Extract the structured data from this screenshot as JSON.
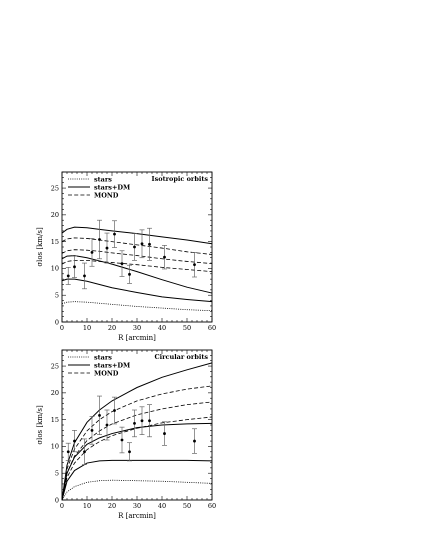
{
  "chart_data": [
    {
      "type": "line",
      "title": "Isotropic orbits",
      "xlabel": "R [arcmin]",
      "ylabel": "σlos [km/s]",
      "xlim": [
        0,
        60
      ],
      "ylim": [
        0,
        28
      ],
      "xticks": [
        0,
        10,
        20,
        30,
        40,
        50,
        60
      ],
      "yticks": [
        0,
        5,
        10,
        15,
        20,
        25
      ],
      "legend": [
        "stars",
        "stars+DM",
        "MOND"
      ],
      "legend_position": "top-left",
      "grid": false,
      "series": [
        {
          "name": "stars",
          "style": "dotted",
          "x": [
            0,
            2,
            5,
            10,
            15,
            20,
            30,
            40,
            50,
            60
          ],
          "y": [
            3.4,
            3.7,
            3.8,
            3.7,
            3.5,
            3.3,
            2.9,
            2.6,
            2.3,
            2.1
          ]
        },
        {
          "name": "stars+DM",
          "style": "solid",
          "x": [
            0,
            2,
            5,
            10,
            15,
            20,
            30,
            40,
            50,
            60
          ],
          "y": [
            16.6,
            17.3,
            17.7,
            17.6,
            17.3,
            17.0,
            16.5,
            15.9,
            15.3,
            14.6
          ]
        },
        {
          "name": "stars+DM",
          "style": "solid",
          "x": [
            0,
            2,
            5,
            10,
            15,
            20,
            30,
            40,
            50,
            60
          ],
          "y": [
            11.8,
            12.3,
            12.4,
            12.0,
            11.4,
            10.8,
            9.4,
            7.9,
            6.5,
            5.4
          ]
        },
        {
          "name": "stars+DM",
          "style": "solid",
          "x": [
            0,
            2,
            5,
            10,
            15,
            20,
            30,
            40,
            50,
            60
          ],
          "y": [
            7.7,
            8.0,
            8.0,
            7.6,
            7.0,
            6.4,
            5.5,
            4.7,
            4.2,
            3.8
          ]
        },
        {
          "name": "MOND",
          "style": "dashed",
          "x": [
            0,
            2,
            5,
            10,
            15,
            20,
            30,
            40,
            50,
            60
          ],
          "y": [
            15.0,
            15.5,
            15.7,
            15.6,
            15.3,
            15.0,
            14.4,
            13.8,
            13.1,
            12.6
          ]
        },
        {
          "name": "MOND",
          "style": "dashed",
          "x": [
            0,
            2,
            5,
            10,
            15,
            20,
            30,
            40,
            50,
            60
          ],
          "y": [
            12.8,
            13.3,
            13.5,
            13.4,
            13.2,
            12.9,
            12.4,
            11.8,
            11.3,
            10.9
          ]
        },
        {
          "name": "MOND",
          "style": "dashed",
          "x": [
            0,
            2,
            5,
            10,
            15,
            20,
            30,
            40,
            50,
            60
          ],
          "y": [
            10.8,
            11.3,
            11.5,
            11.5,
            11.3,
            11.1,
            10.7,
            10.2,
            9.8,
            9.4
          ]
        }
      ],
      "points": {
        "x": [
          2.5,
          5,
          9,
          12,
          15,
          18,
          21,
          24,
          27,
          29,
          32,
          35,
          41,
          53
        ],
        "y": [
          8.6,
          10.3,
          8.6,
          13.0,
          15.4,
          13.8,
          16.4,
          10.9,
          8.9,
          14.0,
          14.6,
          14.5,
          12.1,
          10.7
        ],
        "err": [
          1.6,
          2.0,
          2.4,
          2.6,
          3.6,
          2.8,
          2.5,
          2.4,
          1.7,
          2.5,
          2.6,
          3.0,
          2.2,
          2.3
        ]
      }
    },
    {
      "type": "line",
      "title": "Circular orbits",
      "xlabel": "R [arcmin]",
      "ylabel": "σlos [km/s]",
      "xlim": [
        0,
        60
      ],
      "ylim": [
        0,
        28
      ],
      "xticks": [
        0,
        10,
        20,
        30,
        40,
        50,
        60
      ],
      "yticks": [
        0,
        5,
        10,
        15,
        20,
        25
      ],
      "legend": [
        "stars",
        "stars+DM",
        "MOND"
      ],
      "legend_position": "top-left",
      "grid": false,
      "series": [
        {
          "name": "stars",
          "style": "dotted",
          "x": [
            0,
            2,
            5,
            10,
            15,
            20,
            30,
            40,
            50,
            60
          ],
          "y": [
            0,
            1.5,
            2.5,
            3.3,
            3.6,
            3.7,
            3.6,
            3.5,
            3.3,
            3.1
          ]
        },
        {
          "name": "stars+DM",
          "style": "solid",
          "x": [
            0,
            2,
            5,
            10,
            15,
            20,
            30,
            40,
            50,
            60
          ],
          "y": [
            0,
            6.5,
            10.7,
            14.5,
            16.8,
            18.5,
            21.0,
            22.9,
            24.3,
            25.6
          ]
        },
        {
          "name": "stars+DM",
          "style": "solid",
          "x": [
            0,
            2,
            5,
            10,
            15,
            20,
            30,
            40,
            50,
            60
          ],
          "y": [
            0,
            5.0,
            8.0,
            10.4,
            11.6,
            12.4,
            13.5,
            14.0,
            14.2,
            14.3
          ]
        },
        {
          "name": "stars+DM",
          "style": "solid",
          "x": [
            0,
            2,
            5,
            10,
            15,
            20,
            30,
            40,
            50,
            60
          ],
          "y": [
            0,
            3.5,
            5.5,
            6.9,
            7.3,
            7.4,
            7.4,
            7.4,
            7.4,
            7.3
          ]
        },
        {
          "name": "MOND",
          "style": "dashed",
          "x": [
            0,
            2,
            5,
            10,
            15,
            20,
            30,
            40,
            50,
            60
          ],
          "y": [
            0,
            5.8,
            9.5,
            12.9,
            15.0,
            16.5,
            18.5,
            19.8,
            20.7,
            21.3
          ]
        },
        {
          "name": "MOND",
          "style": "dashed",
          "x": [
            0,
            2,
            5,
            10,
            15,
            20,
            30,
            40,
            50,
            60
          ],
          "y": [
            0,
            5.0,
            8.2,
            11.1,
            12.9,
            14.2,
            15.9,
            17.0,
            17.8,
            18.3
          ]
        },
        {
          "name": "MOND",
          "style": "dashed",
          "x": [
            0,
            2,
            5,
            10,
            15,
            20,
            30,
            40,
            50,
            60
          ],
          "y": [
            0,
            4.2,
            6.9,
            9.4,
            10.9,
            12.0,
            13.4,
            14.4,
            15.0,
            15.5
          ]
        }
      ],
      "points": {
        "x": [
          2.5,
          5,
          9,
          12,
          15,
          18,
          21,
          24,
          27,
          29,
          32,
          35,
          41,
          53
        ],
        "y": [
          9.0,
          11.0,
          9.0,
          13.0,
          15.8,
          14.0,
          16.7,
          11.2,
          9.0,
          14.3,
          14.8,
          14.8,
          12.4,
          11.0
        ],
        "err": [
          1.6,
          2.0,
          2.4,
          2.6,
          3.6,
          2.8,
          2.5,
          2.4,
          1.7,
          2.5,
          2.6,
          3.0,
          2.2,
          2.3
        ]
      }
    }
  ]
}
